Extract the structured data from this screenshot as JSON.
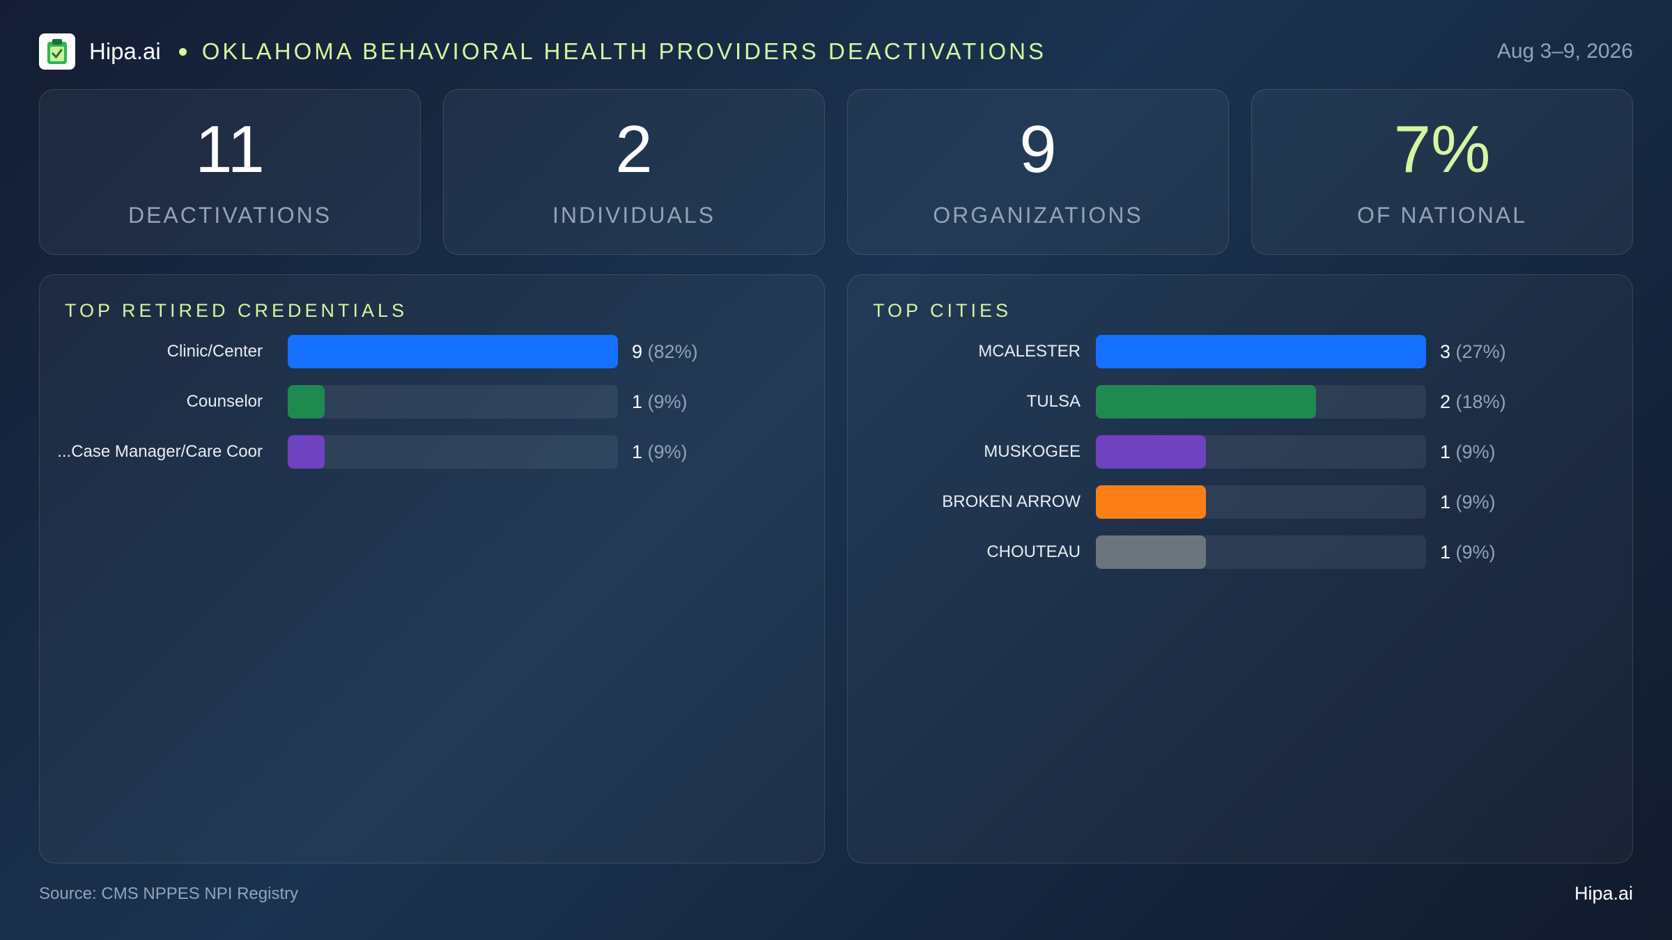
{
  "header": {
    "brand": "Hipa.ai",
    "title": "OKLAHOMA BEHAVIORAL HEALTH PROVIDERS DEACTIVATIONS",
    "date": "Aug 3–9, 2026",
    "logo_icon": "clipboard-check-icon"
  },
  "stats": [
    {
      "value": "11",
      "label": "DEACTIVATIONS"
    },
    {
      "value": "2",
      "label": "INDIVIDUALS"
    },
    {
      "value": "9",
      "label": "ORGANIZATIONS"
    },
    {
      "value": "7%",
      "label": "OF NATIONAL"
    }
  ],
  "colors": {
    "accent": "#d6f5a0",
    "blue": "#1570ff",
    "green": "#1f8a50",
    "purple": "#6f42c1",
    "orange": "#fd7e14",
    "gray": "#6c757d"
  },
  "chart_data": [
    {
      "type": "bar",
      "orientation": "horizontal",
      "title": "TOP RETIRED CREDENTIALS",
      "categories": [
        "Clinic/Center",
        "Counselor",
        "Case Manager/Care Coor..."
      ],
      "values": [
        9,
        1,
        1
      ],
      "percents": [
        "82%",
        "9%",
        "9%"
      ],
      "colors": [
        "#1570ff",
        "#1f8a50",
        "#6f42c1"
      ],
      "xlim": [
        0,
        9
      ]
    },
    {
      "type": "bar",
      "orientation": "horizontal",
      "title": "TOP CITIES",
      "categories": [
        "MCALESTER",
        "TULSA",
        "MUSKOGEE",
        "BROKEN ARROW",
        "CHOUTEAU"
      ],
      "values": [
        3,
        2,
        1,
        1,
        1
      ],
      "percents": [
        "27%",
        "18%",
        "9%",
        "9%",
        "9%"
      ],
      "colors": [
        "#1570ff",
        "#1f8a50",
        "#6f42c1",
        "#fd7e14",
        "#6c757d"
      ],
      "xlim": [
        0,
        3
      ]
    }
  ],
  "footer": {
    "source": "Source: CMS NPPES NPI Registry",
    "brand": "Hipa.ai"
  }
}
